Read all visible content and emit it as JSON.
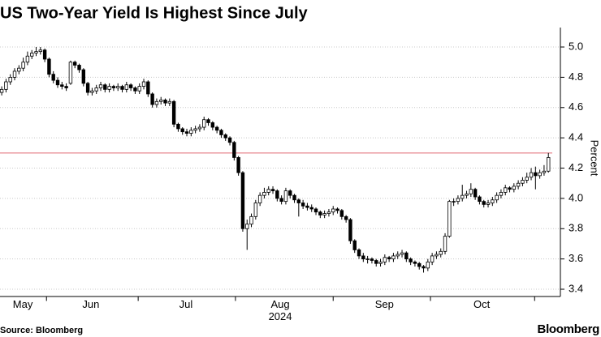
{
  "chart_data": {
    "type": "candlestick",
    "title": "US Two-Year Yield Is Highest Since July",
    "y_axis_label": "Percent",
    "x_axis_label": "2024",
    "source": "Source: Bloomberg",
    "brand": "Bloomberg",
    "up_color": "#ffffff",
    "down_color": "#000000",
    "reference_line": {
      "value": 4.3,
      "color": "#e06b74"
    },
    "grid": true,
    "ylim": [
      3.36,
      5.12
    ],
    "yticks": [
      3.4,
      3.6,
      3.8,
      {
        "value": 4,
        "label": "4.0"
      },
      4.2,
      4.4,
      4.6,
      4.8,
      {
        "value": 5,
        "label": "5.0"
      }
    ],
    "xlim": [
      -0.4,
      127.9
    ],
    "xticks": [
      {
        "value": 4.9,
        "label": "May"
      },
      {
        "value": 20.7,
        "label": "Jun"
      },
      {
        "value": 42.8,
        "label": "Jul"
      },
      {
        "value": 64.7,
        "label": "Aug"
      },
      {
        "value": 88.9,
        "label": "Sep"
      },
      {
        "value": 111.5,
        "label": "Oct"
      }
    ],
    "month_boundaries": [
      10.4,
      31.7,
      54.3,
      77,
      99.6,
      123.8
    ],
    "open": [
      4.7,
      4.72,
      4.77,
      4.8,
      4.84,
      4.86,
      4.9,
      4.94,
      4.96,
      4.97,
      4.98,
      4.92,
      4.82,
      4.78,
      4.75,
      4.74,
      4.76,
      4.9,
      4.88,
      4.85,
      4.76,
      4.7,
      4.71,
      4.73,
      4.75,
      4.72,
      4.74,
      4.73,
      4.74,
      4.72,
      4.75,
      4.73,
      4.71,
      4.74,
      4.77,
      4.69,
      4.62,
      4.64,
      4.65,
      4.63,
      4.64,
      4.49,
      4.46,
      4.44,
      4.43,
      4.45,
      4.46,
      4.47,
      4.52,
      4.5,
      4.47,
      4.45,
      4.42,
      4.4,
      4.37,
      4.27,
      4.17,
      3.8,
      3.83,
      3.88,
      3.97,
      4.02,
      4.04,
      4.06,
      4.05,
      4.0,
      3.98,
      4.05,
      4.02,
      3.99,
      3.97,
      3.95,
      3.94,
      3.93,
      3.91,
      3.89,
      3.9,
      3.91,
      3.93,
      3.92,
      3.88,
      3.86,
      3.72,
      3.66,
      3.62,
      3.6,
      3.6,
      3.59,
      3.57,
      3.58,
      3.61,
      3.6,
      3.62,
      3.63,
      3.64,
      3.6,
      3.58,
      3.57,
      3.55,
      3.54,
      3.58,
      3.62,
      3.63,
      3.65,
      3.75,
      3.98,
      3.98,
      4.0,
      4.02,
      4.03,
      4.06,
      4.01,
      3.98,
      3.96,
      3.97,
      3.99,
      4.02,
      4.04,
      4.07,
      4.06,
      4.08,
      4.1,
      4.12,
      4.14,
      4.17,
      4.15,
      4.17,
      4.18
    ],
    "high": [
      4.74,
      4.79,
      4.82,
      4.86,
      4.88,
      4.93,
      4.97,
      4.98,
      5.0,
      5.0,
      4.99,
      4.93,
      4.84,
      4.8,
      4.77,
      4.76,
      4.91,
      4.91,
      4.89,
      4.86,
      4.77,
      4.73,
      4.75,
      4.77,
      4.76,
      4.76,
      4.75,
      4.76,
      4.75,
      4.77,
      4.76,
      4.74,
      4.76,
      4.79,
      4.78,
      4.7,
      4.66,
      4.67,
      4.66,
      4.66,
      4.65,
      4.5,
      4.47,
      4.46,
      4.47,
      4.48,
      4.49,
      4.54,
      4.53,
      4.51,
      4.48,
      4.46,
      4.43,
      4.41,
      4.38,
      4.28,
      4.18,
      3.86,
      3.9,
      3.99,
      4.04,
      4.07,
      4.08,
      4.08,
      4.06,
      4.02,
      4.07,
      4.06,
      4.03,
      4.0,
      3.99,
      3.97,
      3.96,
      3.94,
      3.92,
      3.92,
      3.93,
      3.95,
      3.94,
      3.93,
      3.89,
      3.87,
      3.73,
      3.67,
      3.64,
      3.62,
      3.61,
      3.6,
      3.6,
      3.63,
      3.62,
      3.64,
      3.65,
      3.66,
      3.65,
      3.61,
      3.59,
      3.58,
      3.56,
      3.6,
      3.64,
      3.65,
      3.67,
      3.77,
      3.99,
      4.0,
      4.02,
      4.09,
      4.05,
      4.1,
      4.07,
      4.02,
      3.99,
      3.99,
      4.01,
      4.04,
      4.06,
      4.09,
      4.08,
      4.1,
      4.12,
      4.14,
      4.17,
      4.2,
      4.21,
      4.19,
      4.22,
      4.3
    ],
    "low": [
      4.68,
      4.7,
      4.75,
      4.78,
      4.82,
      4.84,
      4.88,
      4.92,
      4.94,
      4.95,
      4.9,
      4.8,
      4.76,
      4.73,
      4.72,
      4.71,
      4.75,
      4.86,
      4.83,
      4.74,
      4.68,
      4.68,
      4.69,
      4.71,
      4.7,
      4.7,
      4.71,
      4.71,
      4.7,
      4.7,
      4.71,
      4.69,
      4.69,
      4.72,
      4.67,
      4.6,
      4.6,
      4.62,
      4.61,
      4.61,
      4.47,
      4.44,
      4.42,
      4.41,
      4.41,
      4.43,
      4.44,
      4.45,
      4.48,
      4.45,
      4.43,
      4.4,
      4.38,
      4.35,
      4.25,
      4.15,
      3.78,
      3.66,
      3.81,
      3.86,
      3.95,
      4.0,
      4.02,
      4.03,
      3.98,
      3.96,
      3.96,
      4.0,
      3.97,
      3.88,
      3.93,
      3.92,
      3.91,
      3.89,
      3.87,
      3.87,
      3.88,
      3.89,
      3.9,
      3.86,
      3.84,
      3.7,
      3.64,
      3.6,
      3.58,
      3.57,
      3.57,
      3.55,
      3.55,
      3.56,
      3.58,
      3.58,
      3.6,
      3.61,
      3.58,
      3.56,
      3.55,
      3.53,
      3.51,
      3.52,
      3.56,
      3.6,
      3.61,
      3.63,
      3.74,
      3.95,
      3.96,
      3.98,
      4.0,
      4.01,
      3.99,
      3.96,
      3.94,
      3.94,
      3.95,
      3.97,
      4.0,
      4.02,
      4.04,
      4.04,
      4.06,
      4.08,
      4.1,
      4.12,
      4.06,
      4.13,
      4.15,
      4.17
    ],
    "close": [
      4.72,
      4.77,
      4.8,
      4.84,
      4.86,
      4.9,
      4.94,
      4.96,
      4.97,
      4.98,
      4.92,
      4.82,
      4.78,
      4.75,
      4.74,
      4.73,
      4.9,
      4.88,
      4.85,
      4.76,
      4.7,
      4.71,
      4.73,
      4.75,
      4.72,
      4.74,
      4.73,
      4.74,
      4.72,
      4.75,
      4.73,
      4.71,
      4.74,
      4.77,
      4.69,
      4.62,
      4.64,
      4.65,
      4.63,
      4.64,
      4.49,
      4.46,
      4.44,
      4.43,
      4.45,
      4.46,
      4.47,
      4.52,
      4.5,
      4.47,
      4.45,
      4.42,
      4.4,
      4.37,
      4.27,
      4.17,
      3.8,
      3.83,
      3.88,
      3.97,
      4.02,
      4.04,
      4.06,
      4.05,
      4.0,
      3.98,
      4.05,
      4.02,
      3.99,
      3.97,
      3.95,
      3.94,
      3.93,
      3.91,
      3.89,
      3.9,
      3.91,
      3.93,
      3.92,
      3.88,
      3.86,
      3.72,
      3.66,
      3.62,
      3.6,
      3.6,
      3.59,
      3.57,
      3.58,
      3.61,
      3.6,
      3.62,
      3.63,
      3.64,
      3.6,
      3.58,
      3.57,
      3.55,
      3.54,
      3.58,
      3.62,
      3.63,
      3.65,
      3.75,
      3.98,
      3.98,
      4.0,
      4.02,
      4.03,
      4.06,
      4.01,
      3.98,
      3.96,
      3.97,
      3.99,
      4.02,
      4.04,
      4.07,
      4.06,
      4.08,
      4.1,
      4.12,
      4.14,
      4.17,
      4.15,
      4.17,
      4.18,
      4.27
    ]
  }
}
